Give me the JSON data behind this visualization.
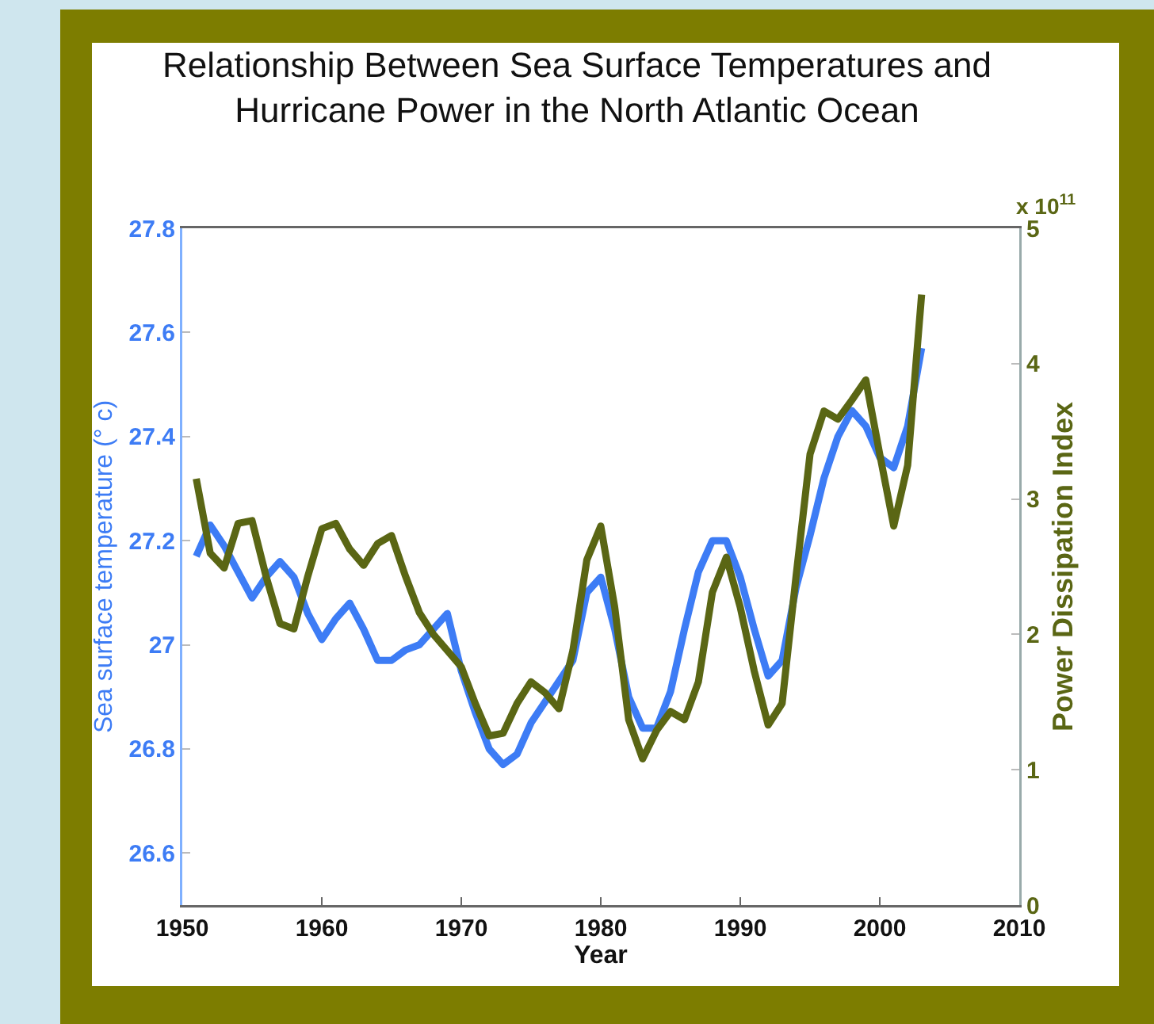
{
  "chart_data": {
    "type": "line",
    "title": "Relationship Between Sea Surface Temperatures and Hurricane Power in the North Atlantic Ocean",
    "xlabel": "Year",
    "ylabel": "Sea surface temperature (° c)",
    "y2label": "Power Dissipation Index",
    "annotations": [
      "x 10$^{11}$"
    ],
    "x": [
      1951,
      1952,
      1953,
      1954,
      1955,
      1956,
      1957,
      1958,
      1959,
      1960,
      1961,
      1962,
      1963,
      1964,
      1965,
      1966,
      1967,
      1968,
      1969,
      1970,
      1971,
      1972,
      1973,
      1974,
      1975,
      1976,
      1977,
      1978,
      1979,
      1980,
      1981,
      1982,
      1983,
      1984,
      1985,
      1986,
      1987,
      1988,
      1989,
      1990,
      1991,
      1992,
      1993,
      1994,
      1995,
      1996,
      1997,
      1998,
      1999,
      2000,
      2001,
      2002,
      2003
    ],
    "series": [
      {
        "color": "#3d7cf5",
        "values": [
          27.17,
          27.23,
          27.19,
          27.14,
          27.09,
          27.13,
          27.16,
          27.13,
          27.06,
          27.01,
          27.05,
          27.08,
          27.03,
          26.97,
          26.97,
          26.99,
          27.0,
          27.03,
          27.06,
          26.95,
          26.87,
          26.8,
          26.77,
          26.79,
          26.85,
          26.89,
          26.93,
          26.97,
          27.1,
          27.13,
          27.03,
          26.9,
          26.84,
          26.84,
          26.91,
          27.03,
          27.14,
          27.2,
          27.2,
          27.13,
          27.03,
          26.94,
          26.97,
          27.11,
          27.21,
          27.32,
          27.4,
          27.45,
          27.42,
          27.36,
          27.34,
          27.42,
          27.57
        ]
      },
      {
        "color": "#5a6614",
        "axis": "y2",
        "values": [
          3.15,
          2.6,
          2.49,
          2.82,
          2.84,
          2.43,
          2.08,
          2.04,
          2.43,
          2.78,
          2.82,
          2.63,
          2.51,
          2.67,
          2.73,
          2.43,
          2.16,
          2.0,
          1.88,
          1.76,
          1.49,
          1.25,
          1.27,
          1.49,
          1.65,
          1.57,
          1.45,
          1.88,
          2.55,
          2.8,
          2.2,
          1.37,
          1.08,
          1.29,
          1.43,
          1.37,
          1.65,
          2.31,
          2.57,
          2.2,
          1.73,
          1.33,
          1.49,
          2.43,
          3.33,
          3.65,
          3.59,
          3.73,
          3.88,
          3.33,
          2.8,
          3.25,
          4.51
        ]
      }
    ],
    "xlim": [
      1950,
      2010
    ],
    "xticks": [
      1950,
      1960,
      1970,
      1980,
      1990,
      2000,
      2010
    ],
    "ylim": [
      26.5,
      27.8
    ],
    "yticks": [
      26.6,
      26.8,
      27,
      27.2,
      27.4,
      27.6,
      27.8
    ],
    "y2lim": [
      0,
      5
    ],
    "y2ticks": [
      0,
      1,
      2,
      3,
      4,
      5
    ]
  }
}
